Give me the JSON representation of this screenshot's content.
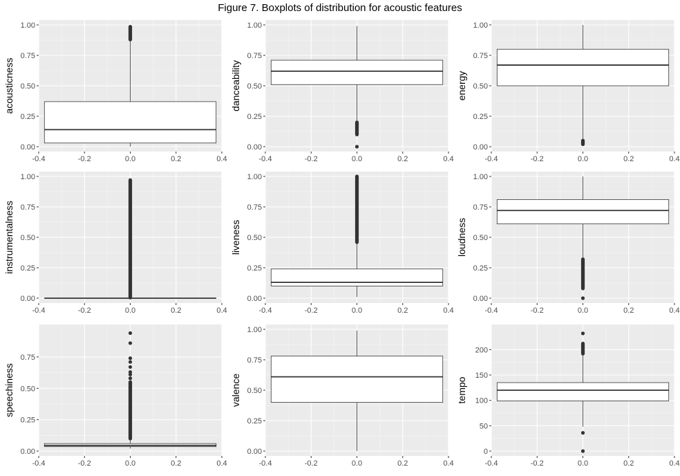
{
  "title": "Figure 7. Boxplots of distribution for acoustic features",
  "chart_data": [
    {
      "type": "box",
      "ylabel": "acousticness",
      "xlim": [
        -0.4,
        0.4
      ],
      "ylim": [
        0,
        1
      ],
      "x_ticks": [
        "-0.4",
        "-0.2",
        "0.0",
        "0.2",
        "0.4"
      ],
      "y_ticks": [
        "0.00",
        "0.25",
        "0.50",
        "0.75",
        "1.00"
      ],
      "box": {
        "whisker_low": 0.0,
        "q1": 0.03,
        "median": 0.14,
        "q3": 0.37,
        "whisker_high": 0.87
      },
      "outlier_ranges": [
        [
          0.88,
          0.985
        ]
      ],
      "outliers": []
    },
    {
      "type": "box",
      "ylabel": "danceability",
      "xlim": [
        -0.4,
        0.4
      ],
      "ylim": [
        0,
        1
      ],
      "x_ticks": [
        "-0.4",
        "-0.2",
        "0.0",
        "0.2",
        "0.4"
      ],
      "y_ticks": [
        "0.00",
        "0.25",
        "0.50",
        "0.75",
        "1.00"
      ],
      "box": {
        "whisker_low": 0.21,
        "q1": 0.51,
        "median": 0.62,
        "q3": 0.71,
        "whisker_high": 0.99
      },
      "outlier_ranges": [
        [
          0.1,
          0.2
        ]
      ],
      "outliers": [
        0.0
      ]
    },
    {
      "type": "box",
      "ylabel": "energy",
      "xlim": [
        -0.4,
        0.4
      ],
      "ylim": [
        0,
        1
      ],
      "x_ticks": [
        "-0.4",
        "-0.2",
        "0.0",
        "0.2",
        "0.4"
      ],
      "y_ticks": [
        "0.00",
        "0.25",
        "0.50",
        "0.75",
        "1.00"
      ],
      "box": {
        "whisker_low": 0.06,
        "q1": 0.5,
        "median": 0.67,
        "q3": 0.8,
        "whisker_high": 1.0
      },
      "outlier_ranges": [
        [
          0.02,
          0.05
        ]
      ],
      "outliers": []
    },
    {
      "type": "box",
      "ylabel": "instrumentalness",
      "xlim": [
        -0.4,
        0.4
      ],
      "ylim": [
        0,
        1
      ],
      "x_ticks": [
        "-0.4",
        "-0.2",
        "0.0",
        "0.2",
        "0.4"
      ],
      "y_ticks": [
        "0.00",
        "0.25",
        "0.50",
        "0.75",
        "1.00"
      ],
      "box": {
        "whisker_low": 0.0,
        "q1": 0.0,
        "median": 0.0,
        "q3": 0.0,
        "whisker_high": 0.0
      },
      "outlier_ranges": [
        [
          0.005,
          0.97
        ]
      ],
      "outliers": []
    },
    {
      "type": "box",
      "ylabel": "liveness",
      "xlim": [
        -0.4,
        0.4
      ],
      "ylim": [
        0,
        1
      ],
      "x_ticks": [
        "-0.4",
        "-0.2",
        "0.0",
        "0.2",
        "0.4"
      ],
      "y_ticks": [
        "0.00",
        "0.25",
        "0.50",
        "0.75",
        "1.00"
      ],
      "box": {
        "whisker_low": 0.01,
        "q1": 0.1,
        "median": 0.13,
        "q3": 0.24,
        "whisker_high": 0.45
      },
      "outlier_ranges": [
        [
          0.46,
          1.0
        ]
      ],
      "outliers": []
    },
    {
      "type": "box",
      "ylabel": "loudness",
      "xlim": [
        -0.4,
        0.4
      ],
      "ylim": [
        0,
        1
      ],
      "x_ticks": [
        "-0.4",
        "-0.2",
        "0.0",
        "0.2",
        "0.4"
      ],
      "y_ticks": [
        "0.00",
        "0.25",
        "0.50",
        "0.75",
        "1.00"
      ],
      "box": {
        "whisker_low": 0.33,
        "q1": 0.61,
        "median": 0.72,
        "q3": 0.81,
        "whisker_high": 1.0
      },
      "outlier_ranges": [
        [
          0.08,
          0.32
        ]
      ],
      "outliers": [
        0.0
      ]
    },
    {
      "type": "box",
      "ylabel": "speechiness",
      "xlim": [
        -0.4,
        0.4
      ],
      "ylim": [
        0,
        0.97
      ],
      "x_ticks": [
        "-0.4",
        "-0.2",
        "0.0",
        "0.2",
        "0.4"
      ],
      "y_ticks": [
        "0.00",
        "0.25",
        "0.50",
        "0.75"
      ],
      "box": {
        "whisker_low": 0.02,
        "q1": 0.035,
        "median": 0.045,
        "q3": 0.06,
        "whisker_high": 0.1
      },
      "outlier_ranges": [
        [
          0.1,
          0.55
        ]
      ],
      "outliers": [
        0.58,
        0.61,
        0.63,
        0.67,
        0.71,
        0.74,
        0.86,
        0.94
      ]
    },
    {
      "type": "box",
      "ylabel": "valence",
      "xlim": [
        -0.4,
        0.4
      ],
      "ylim": [
        0,
        1
      ],
      "x_ticks": [
        "-0.4",
        "-0.2",
        "0.0",
        "0.2",
        "0.4"
      ],
      "y_ticks": [
        "0.00",
        "0.25",
        "0.50",
        "0.75",
        "1.00"
      ],
      "box": {
        "whisker_low": 0.0,
        "q1": 0.4,
        "median": 0.61,
        "q3": 0.78,
        "whisker_high": 0.99
      },
      "outlier_ranges": [],
      "outliers": []
    },
    {
      "type": "box",
      "ylabel": "tempo",
      "xlim": [
        -0.4,
        0.4
      ],
      "ylim": [
        0,
        240
      ],
      "x_ticks": [
        "-0.4",
        "-0.2",
        "0.0",
        "0.2",
        "0.4"
      ],
      "y_ticks": [
        "0",
        "50",
        "100",
        "150",
        "200"
      ],
      "box": {
        "whisker_low": 48,
        "q1": 99,
        "median": 120,
        "q3": 135,
        "whisker_high": 190
      },
      "outlier_ranges": [
        [
          192,
          212
        ]
      ],
      "outliers": [
        0,
        36,
        232
      ]
    }
  ]
}
